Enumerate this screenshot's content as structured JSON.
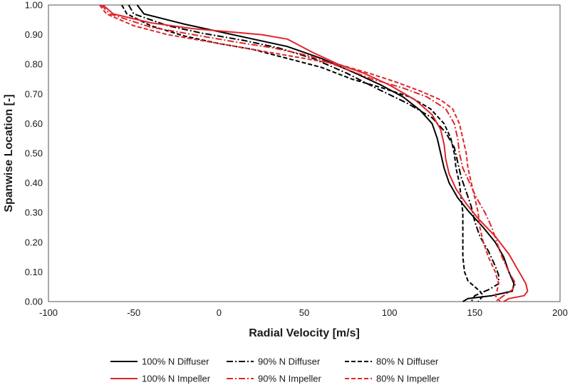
{
  "chart_data": {
    "type": "line",
    "title": "",
    "xlabel": "Radial Velocity [m/s]",
    "ylabel": "Spanwise Location [-]",
    "xlim": [
      -100,
      200
    ],
    "ylim": [
      0,
      1
    ],
    "xticks": [
      -100,
      -50,
      0,
      50,
      100,
      150,
      200
    ],
    "xtick_labels": [
      "-100",
      "-50",
      "0",
      "50",
      "100",
      "150",
      "200"
    ],
    "yticks": [
      0,
      0.1,
      0.2,
      0.3,
      0.4,
      0.5,
      0.6,
      0.7,
      0.8,
      0.9,
      1.0
    ],
    "ytick_labels": [
      "0.00",
      "0.10",
      "0.20",
      "0.30",
      "0.40",
      "0.50",
      "0.60",
      "0.70",
      "0.80",
      "0.90",
      "1.00"
    ],
    "grid": false,
    "legend_position": "bottom",
    "series": [
      {
        "name": "100% N Diffuser",
        "color": "#000000",
        "dash": "solid",
        "points": [
          [
            -48,
            1.0
          ],
          [
            -44,
            0.97
          ],
          [
            -20,
            0.935
          ],
          [
            0,
            0.91
          ],
          [
            20,
            0.885
          ],
          [
            40,
            0.86
          ],
          [
            60,
            0.82
          ],
          [
            80,
            0.77
          ],
          [
            95,
            0.73
          ],
          [
            108,
            0.69
          ],
          [
            118,
            0.645
          ],
          [
            125,
            0.6
          ],
          [
            128,
            0.55
          ],
          [
            130,
            0.5
          ],
          [
            132,
            0.45
          ],
          [
            135,
            0.4
          ],
          [
            140,
            0.35
          ],
          [
            147,
            0.3
          ],
          [
            155,
            0.25
          ],
          [
            162,
            0.2
          ],
          [
            167,
            0.15
          ],
          [
            170,
            0.1
          ],
          [
            173,
            0.06
          ],
          [
            172,
            0.035
          ],
          [
            160,
            0.02
          ],
          [
            146,
            0.01
          ],
          [
            143,
            0.0
          ]
        ]
      },
      {
        "name": "90% N Diffuser",
        "color": "#000000",
        "dash": "dashdot",
        "points": [
          [
            -53,
            1.0
          ],
          [
            -50,
            0.97
          ],
          [
            -30,
            0.93
          ],
          [
            -10,
            0.905
          ],
          [
            15,
            0.88
          ],
          [
            35,
            0.855
          ],
          [
            55,
            0.82
          ],
          [
            75,
            0.77
          ],
          [
            92,
            0.72
          ],
          [
            110,
            0.67
          ],
          [
            125,
            0.62
          ],
          [
            133,
            0.57
          ],
          [
            138,
            0.52
          ],
          [
            140,
            0.47
          ],
          [
            142,
            0.42
          ],
          [
            145,
            0.37
          ],
          [
            148,
            0.32
          ],
          [
            150,
            0.27
          ],
          [
            153,
            0.22
          ],
          [
            158,
            0.17
          ],
          [
            162,
            0.12
          ],
          [
            164,
            0.09
          ],
          [
            164,
            0.06
          ],
          [
            158,
            0.04
          ],
          [
            150,
            0.02
          ],
          [
            148,
            0.0
          ]
        ]
      },
      {
        "name": "80% N Diffuser",
        "color": "#000000",
        "dash": "dashed",
        "points": [
          [
            -57,
            1.0
          ],
          [
            -54,
            0.97
          ],
          [
            -40,
            0.93
          ],
          [
            -20,
            0.895
          ],
          [
            0,
            0.87
          ],
          [
            20,
            0.85
          ],
          [
            40,
            0.82
          ],
          [
            60,
            0.79
          ],
          [
            78,
            0.75
          ],
          [
            96,
            0.72
          ],
          [
            112,
            0.69
          ],
          [
            124,
            0.65
          ],
          [
            132,
            0.6
          ],
          [
            136,
            0.55
          ],
          [
            138,
            0.5
          ],
          [
            139,
            0.45
          ],
          [
            141,
            0.4
          ],
          [
            142,
            0.35
          ],
          [
            143,
            0.3
          ],
          [
            143,
            0.25
          ],
          [
            143,
            0.2
          ],
          [
            143,
            0.15
          ],
          [
            144,
            0.1
          ],
          [
            146,
            0.07
          ],
          [
            150,
            0.05
          ],
          [
            153,
            0.035
          ],
          [
            155,
            0.02
          ],
          [
            152,
            0.0
          ]
        ]
      },
      {
        "name": "100% N Impeller",
        "color": "#e0262b",
        "dash": "solid",
        "points": [
          [
            -68,
            1.0
          ],
          [
            -62,
            0.97
          ],
          [
            -40,
            0.94
          ],
          [
            -15,
            0.92
          ],
          [
            5,
            0.91
          ],
          [
            25,
            0.9
          ],
          [
            40,
            0.885
          ],
          [
            55,
            0.84
          ],
          [
            70,
            0.8
          ],
          [
            85,
            0.77
          ],
          [
            100,
            0.73
          ],
          [
            115,
            0.68
          ],
          [
            125,
            0.63
          ],
          [
            130,
            0.58
          ],
          [
            132,
            0.53
          ],
          [
            133,
            0.48
          ],
          [
            135,
            0.43
          ],
          [
            139,
            0.38
          ],
          [
            145,
            0.33
          ],
          [
            152,
            0.28
          ],
          [
            162,
            0.22
          ],
          [
            170,
            0.16
          ],
          [
            175,
            0.11
          ],
          [
            180,
            0.06
          ],
          [
            181,
            0.035
          ],
          [
            179,
            0.02
          ],
          [
            170,
            0.01
          ],
          [
            167,
            0.0
          ]
        ]
      },
      {
        "name": "90% N Impeller",
        "color": "#e0262b",
        "dash": "dashdot",
        "points": [
          [
            -69,
            1.0
          ],
          [
            -64,
            0.97
          ],
          [
            -40,
            0.925
          ],
          [
            -15,
            0.9
          ],
          [
            10,
            0.875
          ],
          [
            32,
            0.855
          ],
          [
            52,
            0.83
          ],
          [
            72,
            0.79
          ],
          [
            90,
            0.75
          ],
          [
            108,
            0.72
          ],
          [
            122,
            0.69
          ],
          [
            133,
            0.65
          ],
          [
            138,
            0.6
          ],
          [
            140,
            0.55
          ],
          [
            141,
            0.5
          ],
          [
            143,
            0.45
          ],
          [
            147,
            0.4
          ],
          [
            151,
            0.35
          ],
          [
            156,
            0.3
          ],
          [
            160,
            0.25
          ],
          [
            163,
            0.2
          ],
          [
            166,
            0.15
          ],
          [
            170,
            0.1
          ],
          [
            174,
            0.06
          ],
          [
            172,
            0.04
          ],
          [
            167,
            0.02
          ],
          [
            162,
            0.0
          ]
        ]
      },
      {
        "name": "80% N Impeller",
        "color": "#e0262b",
        "dash": "dashed",
        "points": [
          [
            -70,
            1.0
          ],
          [
            -66,
            0.97
          ],
          [
            -50,
            0.93
          ],
          [
            -30,
            0.9
          ],
          [
            -10,
            0.88
          ],
          [
            10,
            0.86
          ],
          [
            30,
            0.84
          ],
          [
            50,
            0.82
          ],
          [
            70,
            0.8
          ],
          [
            88,
            0.77
          ],
          [
            104,
            0.74
          ],
          [
            118,
            0.71
          ],
          [
            130,
            0.68
          ],
          [
            137,
            0.65
          ],
          [
            141,
            0.6
          ],
          [
            143,
            0.55
          ],
          [
            145,
            0.5
          ],
          [
            146,
            0.45
          ],
          [
            148,
            0.4
          ],
          [
            150,
            0.35
          ],
          [
            152,
            0.3
          ],
          [
            153,
            0.25
          ],
          [
            155,
            0.2
          ],
          [
            158,
            0.15
          ],
          [
            162,
            0.1
          ],
          [
            164,
            0.06
          ],
          [
            163,
            0.035
          ],
          [
            162,
            0.02
          ],
          [
            165,
            0.0
          ]
        ]
      }
    ]
  }
}
